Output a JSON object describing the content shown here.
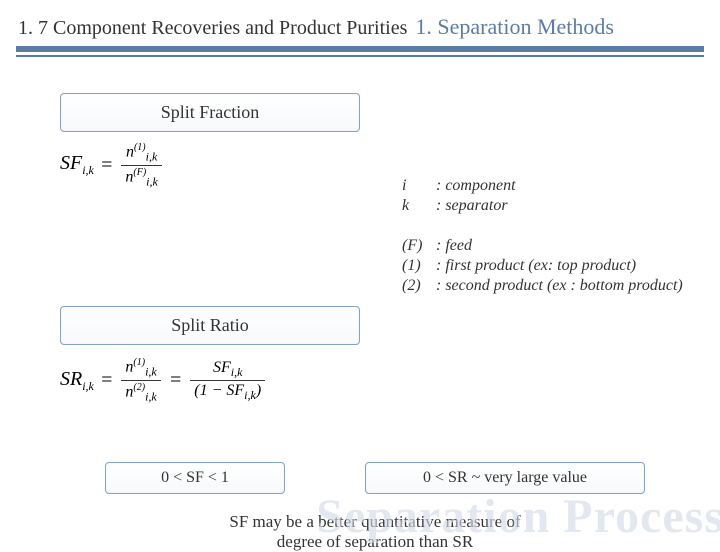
{
  "header": {
    "left": "1. 7 Component Recoveries and Product Purities",
    "right": "1. Separation Methods"
  },
  "colors": {
    "accent": "#5b7ca6",
    "box_border": "#84a3c9",
    "text": "#333333",
    "watermark": "rgba(153,170,200,0.28)"
  },
  "boxes": {
    "split_fraction": "Split Fraction",
    "split_ratio": "Split Ratio",
    "sf_range": "0 < SF < 1",
    "sr_range": "0 < SR ~ very large value"
  },
  "formulas": {
    "sf": {
      "lhs": "SF",
      "lhs_sub": "i,k",
      "eq": "=",
      "num_base": "n",
      "num_sup": "(1)",
      "num_sub": "i,k",
      "den_base": "n",
      "den_sup": "(F)",
      "den_sub": "i,k"
    },
    "sr": {
      "lhs": "SR",
      "lhs_sub": "i,k",
      "eq": "=",
      "num1_base": "n",
      "num1_sup": "(1)",
      "num1_sub": "i,k",
      "den1_base": "n",
      "den1_sup": "(2)",
      "den1_sub": "i,k",
      "eq2": "=",
      "num2": "SF",
      "num2_sub": "i,k",
      "den2_left": "(1 −",
      "den2_mid": "SF",
      "den2_sub": "i,k",
      "den2_right": ")"
    }
  },
  "legend": {
    "rows1": [
      {
        "key": "i",
        "val": ": component"
      },
      {
        "key": "k",
        "val": ": separator"
      }
    ],
    "rows2": [
      {
        "key": "(F)",
        "val": ": feed"
      },
      {
        "key": "(1)",
        "val": ": first product (ex: top product)"
      },
      {
        "key": "(2)",
        "val": ": second product (ex : bottom product)"
      }
    ]
  },
  "note_line1": "SF may be a better quantitative measure of",
  "note_line2": "degree of separation than SR",
  "watermark": "Separation Process"
}
